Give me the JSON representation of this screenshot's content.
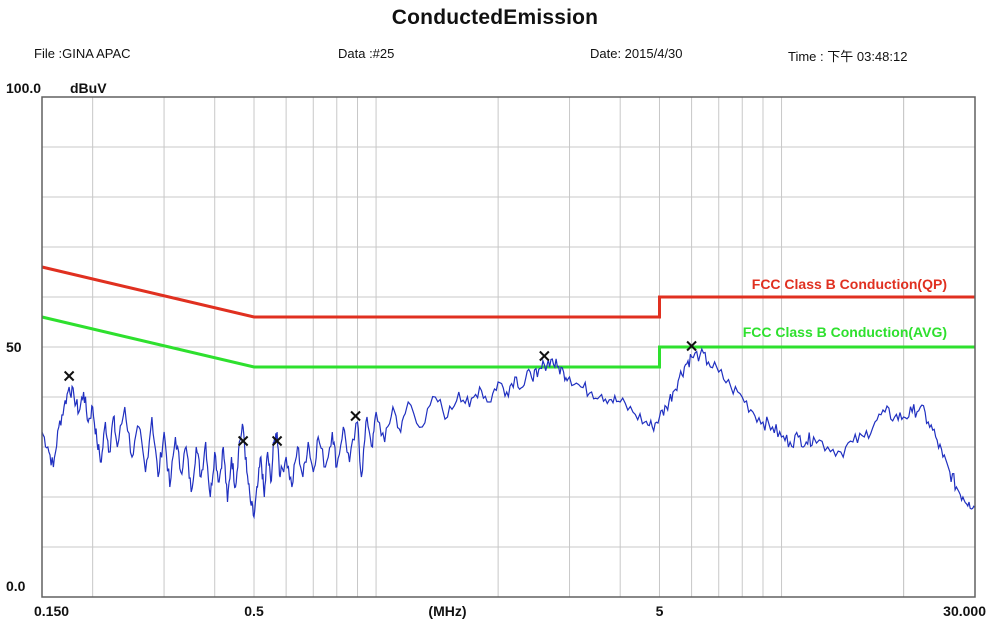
{
  "header": {
    "title": "ConductedEmission",
    "file": "File :GINA APAC",
    "data": "Data :#25",
    "date": "Date: 2015/4/30",
    "time": "Time : 下午 03:48:12"
  },
  "chart_data": {
    "type": "line",
    "title": "ConductedEmission",
    "xlabel": "(MHz)",
    "ylabel": "dBuV",
    "x_scale": "log",
    "xlim": [
      0.15,
      30
    ],
    "ylim": [
      0,
      100
    ],
    "x_tick_labels": [
      {
        "value": 0.15,
        "label": "0.150"
      },
      {
        "value": 0.5,
        "label": "0.5"
      },
      {
        "value": 1.5,
        "label": "(MHz)"
      },
      {
        "value": 5,
        "label": "5"
      },
      {
        "value": 30,
        "label": "30.000"
      }
    ],
    "y_tick_labels": [
      {
        "value": 100,
        "label": "100.0"
      },
      {
        "value": 50,
        "label": "50"
      },
      {
        "value": 0,
        "label": "0.0"
      }
    ],
    "grid": true,
    "colors": {
      "qp": "#e03020",
      "avg": "#2ee02e",
      "measured": "#2030c0",
      "grid": "#c8c8c8",
      "frame": "#606060"
    },
    "series": [
      {
        "name": "FCC Class B Conduction(QP)",
        "color": "#e03020",
        "points": [
          [
            0.15,
            66
          ],
          [
            0.5,
            56
          ],
          [
            5,
            56
          ],
          [
            5,
            60
          ],
          [
            30,
            60
          ]
        ]
      },
      {
        "name": "FCC Class B Conduction(AVG)",
        "color": "#2ee02e",
        "points": [
          [
            0.15,
            56
          ],
          [
            0.5,
            46
          ],
          [
            5,
            46
          ],
          [
            5,
            50
          ],
          [
            30,
            50
          ]
        ]
      },
      {
        "name": "",
        "color": "#2030c0",
        "points": [
          [
            0.15,
            33
          ],
          [
            0.155,
            30
          ],
          [
            0.16,
            26
          ],
          [
            0.165,
            34
          ],
          [
            0.17,
            38
          ],
          [
            0.175,
            42
          ],
          [
            0.18,
            40
          ],
          [
            0.185,
            37
          ],
          [
            0.19,
            41
          ],
          [
            0.195,
            35
          ],
          [
            0.2,
            38
          ],
          [
            0.205,
            31
          ],
          [
            0.21,
            27
          ],
          [
            0.215,
            35
          ],
          [
            0.22,
            29
          ],
          [
            0.225,
            36
          ],
          [
            0.23,
            30
          ],
          [
            0.24,
            38
          ],
          [
            0.25,
            28
          ],
          [
            0.26,
            34
          ],
          [
            0.27,
            25
          ],
          [
            0.28,
            36
          ],
          [
            0.29,
            24
          ],
          [
            0.3,
            33
          ],
          [
            0.31,
            22
          ],
          [
            0.32,
            32
          ],
          [
            0.33,
            25
          ],
          [
            0.34,
            30
          ],
          [
            0.35,
            21
          ],
          [
            0.36,
            30
          ],
          [
            0.37,
            24
          ],
          [
            0.38,
            31
          ],
          [
            0.39,
            20
          ],
          [
            0.4,
            29
          ],
          [
            0.41,
            23
          ],
          [
            0.42,
            30
          ],
          [
            0.43,
            19
          ],
          [
            0.44,
            28
          ],
          [
            0.45,
            22
          ],
          [
            0.46,
            31
          ],
          [
            0.47,
            34
          ],
          [
            0.48,
            25
          ],
          [
            0.49,
            19
          ],
          [
            0.5,
            16
          ],
          [
            0.51,
            22
          ],
          [
            0.52,
            28
          ],
          [
            0.53,
            20
          ],
          [
            0.54,
            29
          ],
          [
            0.55,
            23
          ],
          [
            0.56,
            31
          ],
          [
            0.57,
            33
          ],
          [
            0.58,
            24
          ],
          [
            0.6,
            28
          ],
          [
            0.62,
            22
          ],
          [
            0.64,
            30
          ],
          [
            0.66,
            24
          ],
          [
            0.68,
            31
          ],
          [
            0.7,
            25
          ],
          [
            0.72,
            32
          ],
          [
            0.75,
            26
          ],
          [
            0.78,
            33
          ],
          [
            0.8,
            26
          ],
          [
            0.83,
            34
          ],
          [
            0.86,
            27
          ],
          [
            0.9,
            35
          ],
          [
            0.92,
            24
          ],
          [
            0.95,
            36
          ],
          [
            0.98,
            30
          ],
          [
            1.0,
            37
          ],
          [
            1.05,
            31
          ],
          [
            1.1,
            38
          ],
          [
            1.15,
            33
          ],
          [
            1.2,
            39
          ],
          [
            1.3,
            34
          ],
          [
            1.4,
            40
          ],
          [
            1.5,
            36
          ],
          [
            1.6,
            41
          ],
          [
            1.7,
            38
          ],
          [
            1.8,
            42
          ],
          [
            1.9,
            39
          ],
          [
            2.0,
            43
          ],
          [
            2.1,
            41
          ],
          [
            2.2,
            44
          ],
          [
            2.3,
            42
          ],
          [
            2.4,
            45
          ],
          [
            2.5,
            44
          ],
          [
            2.6,
            46.5
          ],
          [
            2.7,
            47.5
          ],
          [
            2.8,
            46
          ],
          [
            2.9,
            45
          ],
          [
            3.0,
            44
          ],
          [
            3.2,
            42
          ],
          [
            3.4,
            41
          ],
          [
            3.6,
            40.5
          ],
          [
            3.8,
            39.5
          ],
          [
            4.0,
            39
          ],
          [
            4.3,
            37
          ],
          [
            4.6,
            35
          ],
          [
            4.8,
            34
          ],
          [
            5.0,
            36
          ],
          [
            5.2,
            38
          ],
          [
            5.4,
            41
          ],
          [
            5.6,
            44
          ],
          [
            5.8,
            46.5
          ],
          [
            6.0,
            48
          ],
          [
            6.3,
            48.5
          ],
          [
            6.6,
            47
          ],
          [
            7.0,
            45
          ],
          [
            7.5,
            42
          ],
          [
            8.0,
            40
          ],
          [
            8.5,
            37
          ],
          [
            9.0,
            35
          ],
          [
            9.5,
            34
          ],
          [
            10.0,
            32
          ],
          [
            10.5,
            31
          ],
          [
            11.0,
            32
          ],
          [
            11.5,
            31
          ],
          [
            12.0,
            32
          ],
          [
            13.0,
            30
          ],
          [
            14.0,
            29
          ],
          [
            15.0,
            31
          ],
          [
            16.0,
            32
          ],
          [
            17.0,
            35
          ],
          [
            18.0,
            37
          ],
          [
            19.0,
            36
          ],
          [
            20.0,
            36
          ],
          [
            21.0,
            37
          ],
          [
            22.0,
            38
          ],
          [
            23.0,
            35
          ],
          [
            24.0,
            32
          ],
          [
            25.0,
            28
          ],
          [
            26.0,
            25
          ],
          [
            27.0,
            22
          ],
          [
            28.0,
            20
          ],
          [
            29.0,
            19
          ],
          [
            30.0,
            18
          ]
        ]
      }
    ],
    "markers": [
      {
        "x": 0.175,
        "y": 43
      },
      {
        "x": 0.47,
        "y": 30
      },
      {
        "x": 0.57,
        "y": 30
      },
      {
        "x": 0.89,
        "y": 35
      },
      {
        "x": 2.6,
        "y": 47
      },
      {
        "x": 6.0,
        "y": 49
      }
    ]
  }
}
